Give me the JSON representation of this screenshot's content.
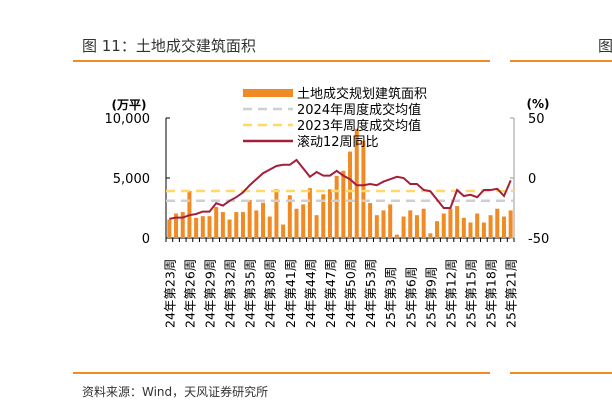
{
  "header": {
    "title": "图 11：土地成交建筑面积",
    "next_title_fragment": "图"
  },
  "footer": {
    "source": "资料来源：Wind，天风证券研究所"
  },
  "colors": {
    "accent": "#f08a24",
    "bar": "#f08a24",
    "line": "#a3203a",
    "avg2024": "#cfcfcf",
    "avg2023": "#ffd866"
  },
  "chart_data": {
    "type": "bar+line",
    "y_left_unit": "(万平)",
    "y_right_unit": "(%)",
    "y_left_ticks": [
      "0",
      "5,000",
      "10,000"
    ],
    "ylim_left": [
      0,
      10000
    ],
    "y_right_ticks": [
      "-50",
      "0",
      "50"
    ],
    "ylim_right": [
      -50,
      50
    ],
    "grid": false,
    "legend_placement": "top-center",
    "x_tick_labels": [
      "24年第23周",
      "24年第26周",
      "24年第29周",
      "24年第32周",
      "24年第35周",
      "24年第38周",
      "24年第41周",
      "24年第44周",
      "24年第47周",
      "24年第50周",
      "24年第53周",
      "25年第3周",
      "25年第6周",
      "25年第9周",
      "25年第12周",
      "25年第15周",
      "25年第18周",
      "25年第21周"
    ],
    "series": [
      {
        "name": "土地成交规划建筑面积",
        "type": "bar",
        "axis": "left",
        "values": [
          1540,
          2040,
          2160,
          3920,
          1680,
          1820,
          1820,
          2580,
          2160,
          1540,
          2160,
          2160,
          3170,
          2300,
          2940,
          1790,
          4060,
          1120,
          3560,
          2440,
          2800,
          4150,
          1900,
          3640,
          4060,
          5180,
          5600,
          7200,
          9100,
          8120,
          2910,
          1900,
          2300,
          2800,
          280,
          1790,
          2300,
          1900,
          2440,
          390,
          1400,
          2040,
          2440,
          2660,
          1680,
          1290,
          2040,
          1290,
          1900,
          2440,
          1790,
          2300
        ]
      },
      {
        "name": "2024年周度成交均值",
        "type": "hline",
        "axis": "left",
        "value": 3100
      },
      {
        "name": "2023年周度成交均值",
        "type": "hline",
        "axis": "left",
        "value": 3920
      },
      {
        "name": "滚动12周同比",
        "type": "line",
        "axis": "right",
        "values": [
          -34,
          -33,
          -33,
          -31,
          -30,
          -28,
          -28,
          -21,
          -23,
          -19,
          -16,
          -12,
          -6,
          -1,
          4,
          7,
          10,
          11,
          11,
          15,
          8,
          1,
          5,
          2,
          2,
          6,
          2,
          -1,
          -6,
          -6,
          -5,
          -6,
          -3,
          -1,
          1,
          0,
          -5,
          -5,
          -10,
          -11,
          -18,
          -25,
          -25,
          -10,
          -15,
          -14,
          -16,
          -10,
          -10,
          -9,
          -15,
          -2
        ]
      }
    ]
  }
}
